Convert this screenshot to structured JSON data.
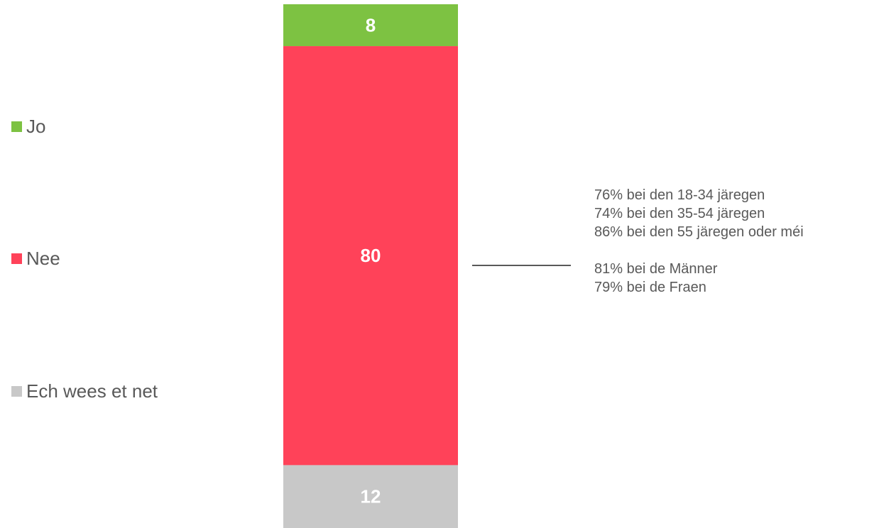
{
  "chart_data": {
    "type": "bar",
    "stacked": true,
    "orientation": "vertical",
    "categories": [
      ""
    ],
    "series": [
      {
        "name": "Jo",
        "values": [
          8
        ],
        "color": "#7dc242"
      },
      {
        "name": "Nee",
        "values": [
          80
        ],
        "color": "#ff4259"
      },
      {
        "name": "Ech wees et net",
        "values": [
          12
        ],
        "color": "#c8c8c8"
      }
    ],
    "ylim": [
      0,
      100
    ],
    "grid": false,
    "legend": "left",
    "data_labels": true
  },
  "legend": [
    {
      "label": "Jo",
      "color": "#7dc242"
    },
    {
      "label": "Nee",
      "color": "#ff4259"
    },
    {
      "label": "Ech wees et net",
      "color": "#c8c8c8"
    }
  ],
  "annotation": {
    "age_lines": [
      "76% bei den 18-34 järegen",
      "74% bei den 35-54 järegen",
      "86% bei den 55 järegen oder méi"
    ],
    "gender_lines": [
      "81% bei de Männer",
      "79% bei de Fraen"
    ],
    "connector_color": "#595959"
  }
}
